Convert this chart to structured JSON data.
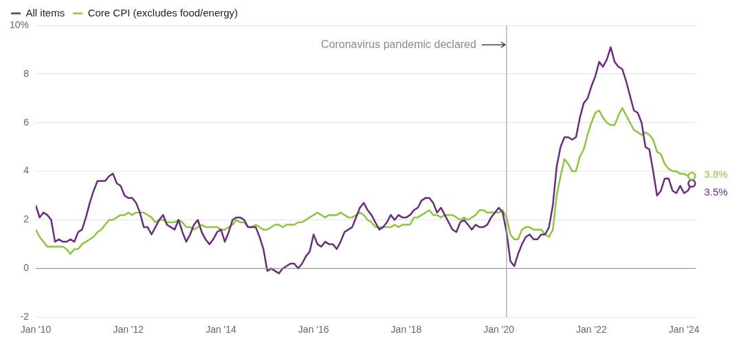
{
  "chart_data": {
    "type": "line",
    "x": [
      "2010-01",
      "2010-02",
      "2010-03",
      "2010-04",
      "2010-05",
      "2010-06",
      "2010-07",
      "2010-08",
      "2010-09",
      "2010-10",
      "2010-11",
      "2010-12",
      "2011-01",
      "2011-02",
      "2011-03",
      "2011-04",
      "2011-05",
      "2011-06",
      "2011-07",
      "2011-08",
      "2011-09",
      "2011-10",
      "2011-11",
      "2011-12",
      "2012-01",
      "2012-02",
      "2012-03",
      "2012-04",
      "2012-05",
      "2012-06",
      "2012-07",
      "2012-08",
      "2012-09",
      "2012-10",
      "2012-11",
      "2012-12",
      "2013-01",
      "2013-02",
      "2013-03",
      "2013-04",
      "2013-05",
      "2013-06",
      "2013-07",
      "2013-08",
      "2013-09",
      "2013-10",
      "2013-11",
      "2013-12",
      "2014-01",
      "2014-02",
      "2014-03",
      "2014-04",
      "2014-05",
      "2014-06",
      "2014-07",
      "2014-08",
      "2014-09",
      "2014-10",
      "2014-11",
      "2014-12",
      "2015-01",
      "2015-02",
      "2015-03",
      "2015-04",
      "2015-05",
      "2015-06",
      "2015-07",
      "2015-08",
      "2015-09",
      "2015-10",
      "2015-11",
      "2015-12",
      "2016-01",
      "2016-02",
      "2016-03",
      "2016-04",
      "2016-05",
      "2016-06",
      "2016-07",
      "2016-08",
      "2016-09",
      "2016-10",
      "2016-11",
      "2016-12",
      "2017-01",
      "2017-02",
      "2017-03",
      "2017-04",
      "2017-05",
      "2017-06",
      "2017-07",
      "2017-08",
      "2017-09",
      "2017-10",
      "2017-11",
      "2017-12",
      "2018-01",
      "2018-02",
      "2018-03",
      "2018-04",
      "2018-05",
      "2018-06",
      "2018-07",
      "2018-08",
      "2018-09",
      "2018-10",
      "2018-11",
      "2018-12",
      "2019-01",
      "2019-02",
      "2019-03",
      "2019-04",
      "2019-05",
      "2019-06",
      "2019-07",
      "2019-08",
      "2019-09",
      "2019-10",
      "2019-11",
      "2019-12",
      "2020-01",
      "2020-02",
      "2020-03",
      "2020-04",
      "2020-05",
      "2020-06",
      "2020-07",
      "2020-08",
      "2020-09",
      "2020-10",
      "2020-11",
      "2020-12",
      "2021-01",
      "2021-02",
      "2021-03",
      "2021-04",
      "2021-05",
      "2021-06",
      "2021-07",
      "2021-08",
      "2021-09",
      "2021-10",
      "2021-11",
      "2021-12",
      "2022-01",
      "2022-02",
      "2022-03",
      "2022-04",
      "2022-05",
      "2022-06",
      "2022-07",
      "2022-08",
      "2022-09",
      "2022-10",
      "2022-11",
      "2022-12",
      "2023-01",
      "2023-02",
      "2023-03",
      "2023-04",
      "2023-05",
      "2023-06",
      "2023-07",
      "2023-08",
      "2023-09",
      "2023-10",
      "2023-11",
      "2023-12",
      "2024-01",
      "2024-02",
      "2024-03"
    ],
    "series": [
      {
        "name": "All items",
        "color": "#6b2a7e",
        "values": [
          2.6,
          2.1,
          2.3,
          2.2,
          2.0,
          1.1,
          1.2,
          1.1,
          1.1,
          1.2,
          1.1,
          1.5,
          1.6,
          2.1,
          2.7,
          3.2,
          3.6,
          3.6,
          3.6,
          3.8,
          3.9,
          3.5,
          3.4,
          3.0,
          2.9,
          2.9,
          2.7,
          2.3,
          1.7,
          1.7,
          1.4,
          1.7,
          2.0,
          2.2,
          1.8,
          1.7,
          1.6,
          2.0,
          1.5,
          1.1,
          1.4,
          1.8,
          2.0,
          1.5,
          1.2,
          1.0,
          1.2,
          1.5,
          1.6,
          1.1,
          1.5,
          2.0,
          2.1,
          2.1,
          2.0,
          1.7,
          1.7,
          1.7,
          1.3,
          0.8,
          -0.1,
          0.0,
          -0.1,
          -0.2,
          0.0,
          0.1,
          0.2,
          0.2,
          0.0,
          0.2,
          0.5,
          0.7,
          1.4,
          1.0,
          0.9,
          1.1,
          1.0,
          1.0,
          0.8,
          1.1,
          1.5,
          1.6,
          1.7,
          2.1,
          2.5,
          2.7,
          2.4,
          2.2,
          1.9,
          1.6,
          1.7,
          1.9,
          2.2,
          2.0,
          2.2,
          2.1,
          2.1,
          2.2,
          2.4,
          2.5,
          2.8,
          2.9,
          2.9,
          2.7,
          2.3,
          2.5,
          2.2,
          1.9,
          1.6,
          1.5,
          1.9,
          2.0,
          1.8,
          1.6,
          1.8,
          1.7,
          1.7,
          1.8,
          2.1,
          2.3,
          2.5,
          2.3,
          1.5,
          0.3,
          0.1,
          0.6,
          1.0,
          1.3,
          1.4,
          1.2,
          1.2,
          1.4,
          1.4,
          1.7,
          2.6,
          4.2,
          5.0,
          5.4,
          5.4,
          5.3,
          5.4,
          6.2,
          6.8,
          7.0,
          7.5,
          7.9,
          8.5,
          8.3,
          8.6,
          9.1,
          8.5,
          8.3,
          8.2,
          7.7,
          7.1,
          6.5,
          6.4,
          6.0,
          5.0,
          4.9,
          4.0,
          3.0,
          3.2,
          3.7,
          3.7,
          3.2,
          3.1,
          3.4,
          3.1,
          3.2,
          3.5
        ]
      },
      {
        "name": "Core CPI (excludes food/energy)",
        "color": "#8cc63f",
        "values": [
          1.6,
          1.3,
          1.1,
          0.9,
          0.9,
          0.9,
          0.9,
          0.9,
          0.8,
          0.6,
          0.8,
          0.8,
          1.0,
          1.1,
          1.2,
          1.3,
          1.5,
          1.6,
          1.8,
          2.0,
          2.0,
          2.1,
          2.2,
          2.2,
          2.3,
          2.2,
          2.3,
          2.3,
          2.3,
          2.2,
          2.1,
          1.9,
          2.0,
          2.0,
          1.9,
          1.9,
          1.9,
          2.0,
          1.9,
          1.7,
          1.7,
          1.6,
          1.7,
          1.8,
          1.7,
          1.7,
          1.7,
          1.7,
          1.6,
          1.6,
          1.7,
          1.8,
          2.0,
          1.9,
          1.9,
          1.7,
          1.7,
          1.8,
          1.7,
          1.6,
          1.6,
          1.7,
          1.8,
          1.8,
          1.7,
          1.8,
          1.8,
          1.8,
          1.9,
          1.9,
          2.0,
          2.1,
          2.2,
          2.3,
          2.2,
          2.1,
          2.2,
          2.2,
          2.2,
          2.3,
          2.2,
          2.1,
          2.1,
          2.2,
          2.3,
          2.2,
          2.0,
          1.9,
          1.7,
          1.7,
          1.7,
          1.7,
          1.7,
          1.8,
          1.7,
          1.8,
          1.8,
          1.8,
          2.1,
          2.1,
          2.2,
          2.3,
          2.4,
          2.2,
          2.2,
          2.1,
          2.2,
          2.2,
          2.2,
          2.1,
          2.0,
          2.1,
          2.0,
          2.1,
          2.2,
          2.4,
          2.4,
          2.3,
          2.3,
          2.3,
          2.3,
          2.4,
          2.1,
          1.4,
          1.2,
          1.2,
          1.6,
          1.7,
          1.7,
          1.6,
          1.6,
          1.6,
          1.4,
          1.3,
          1.6,
          3.0,
          3.8,
          4.5,
          4.3,
          4.0,
          4.0,
          4.6,
          4.9,
          5.5,
          6.0,
          6.4,
          6.5,
          6.2,
          6.0,
          5.9,
          5.9,
          6.3,
          6.6,
          6.3,
          6.0,
          5.7,
          5.6,
          5.5,
          5.6,
          5.5,
          5.3,
          4.8,
          4.7,
          4.3,
          4.1,
          4.0,
          4.0,
          3.9,
          3.9,
          3.8,
          3.8
        ]
      }
    ],
    "xlim": [
      "2010-01",
      "2024-04"
    ],
    "xticks": [
      {
        "value": "2010-01",
        "label": "Jan '10"
      },
      {
        "value": "2012-01",
        "label": "Jan '12"
      },
      {
        "value": "2014-01",
        "label": "Jan '14"
      },
      {
        "value": "2016-01",
        "label": "Jan '16"
      },
      {
        "value": "2018-01",
        "label": "Jan '18"
      },
      {
        "value": "2020-01",
        "label": "Jan '20"
      },
      {
        "value": "2022-01",
        "label": "Jan '22"
      },
      {
        "value": "2024-01",
        "label": "Jan '24"
      }
    ],
    "ylim": [
      -2,
      10
    ],
    "yticks": [
      -2,
      0,
      2,
      4,
      6,
      {
        "value": 8,
        "label": "8"
      },
      {
        "value": 10,
        "label": "10%"
      }
    ],
    "ref_lines": [
      {
        "axis": "x",
        "value": "2020-03",
        "label": "Coronavirus pandemic declared",
        "color": "#a0a0a0"
      }
    ],
    "annotations": [
      {
        "text": "3.5%",
        "x": "2024-03",
        "y": 3.5
      },
      {
        "text": "3.8%",
        "x": "2024-03",
        "y": 3.8
      }
    ],
    "grid": "y",
    "legend": "top left",
    "marker": "none",
    "line_style": "solid"
  }
}
